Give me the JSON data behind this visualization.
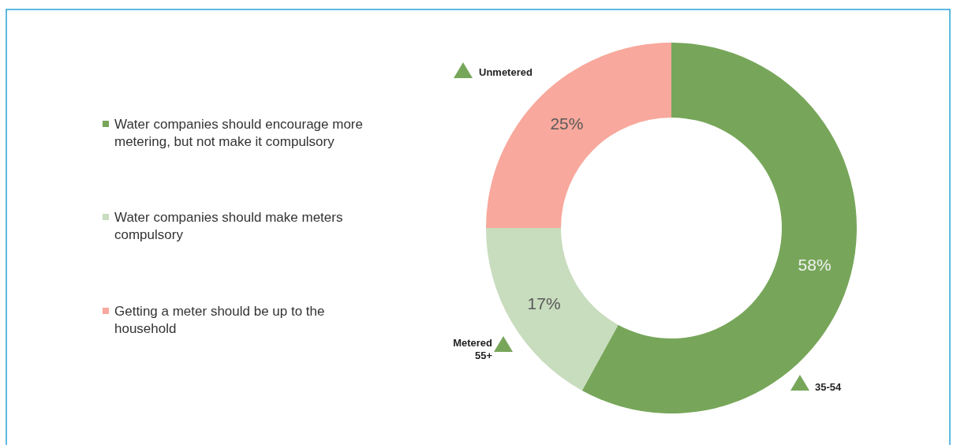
{
  "chart_data": {
    "type": "donut",
    "categories": [
      "Water companies should encourage more metering, but not make it compulsory",
      "Water companies should make meters compulsory",
      "Getting a meter should be up to the household"
    ],
    "values": [
      58,
      17,
      25
    ],
    "colors": [
      "#77a65a",
      "#c8dcbe",
      "#f8a89c"
    ],
    "value_labels": [
      "58%",
      "17%",
      "25%"
    ],
    "legend": "left",
    "annotations": [
      "Unmetered",
      "Metered\n55+",
      "35-54"
    ]
  }
}
